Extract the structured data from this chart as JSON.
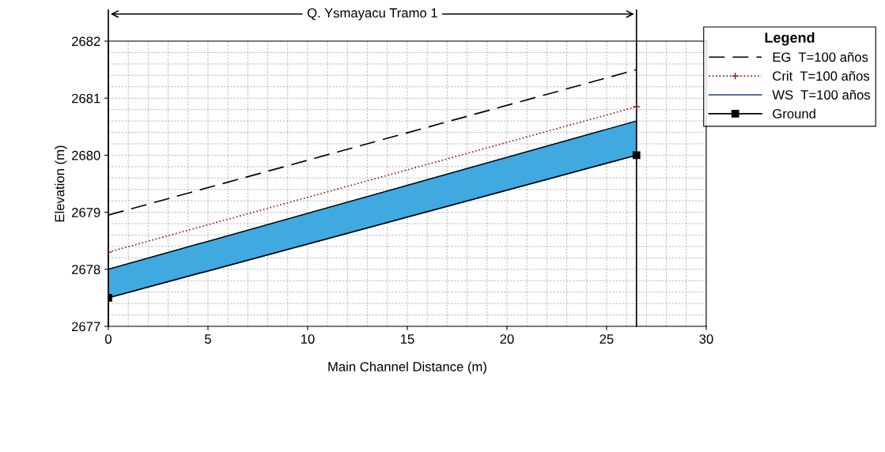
{
  "chart_data": {
    "type": "line",
    "xlabel": "Main Channel Distance (m)",
    "ylabel": "Elevation (m)",
    "legend_title": "Legend",
    "annotations": [
      "Q. Ysmayacu Tramo 1"
    ],
    "x": [
      0,
      26.5
    ],
    "series": [
      {
        "name": "EG  T=100 años",
        "color": "#000000",
        "values": [
          2678.95,
          2681.5
        ],
        "line_style": "dashed",
        "marker": "none"
      },
      {
        "name": "Crit  T=100 años",
        "color": "#8b1a1a",
        "values": [
          2678.3,
          2680.85
        ],
        "line_style": "dotted",
        "marker": "cross"
      },
      {
        "name": "WS  T=100 años",
        "type": "area",
        "color": "#3fa9e0",
        "values": [
          2678.0,
          2680.6
        ],
        "line_style": "solid",
        "marker": "none"
      },
      {
        "name": "Ground",
        "color": "#000000",
        "values": [
          2677.5,
          2680.0
        ],
        "line_style": "solid",
        "marker": "square"
      }
    ],
    "xlim": [
      0,
      30
    ],
    "xticks": [
      0,
      5,
      10,
      15,
      20,
      25,
      30
    ],
    "ylim": [
      2677,
      2682
    ],
    "yticks": [
      2677,
      2678,
      2679,
      2680,
      2681,
      2682
    ],
    "ref_lines": [
      {
        "axis": "x",
        "value": 0,
        "color": "#000000"
      },
      {
        "axis": "x",
        "value": 26.5,
        "color": "#000000"
      }
    ],
    "grid": true,
    "legend": "top right"
  }
}
